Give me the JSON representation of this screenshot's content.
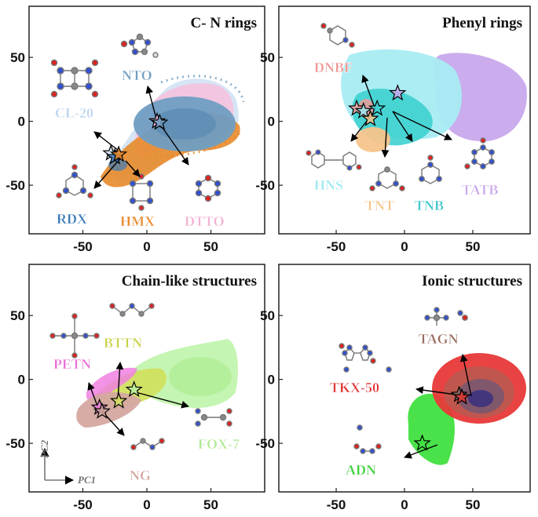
{
  "chart_data": [
    {
      "type": "scatter",
      "title": "C- N rings",
      "xlim": [
        -92,
        92
      ],
      "ylim": [
        -88,
        90
      ],
      "xticks": [
        "-50",
        "0",
        "50"
      ],
      "yticks": [
        "50",
        "0",
        "-50"
      ],
      "series": [
        {
          "name": "CL-20",
          "color": "#c8dcf0",
          "center": [
            -20,
            -10
          ]
        },
        {
          "name": "RDX",
          "color": "#3a7ab8",
          "center": [
            -28,
            -25
          ]
        },
        {
          "name": "HMX",
          "color": "#e8892a",
          "center": [
            -25,
            -28
          ]
        },
        {
          "name": "DTTO",
          "color": "#f5b8d8",
          "center": [
            -5,
            15
          ]
        },
        {
          "name": "NTO",
          "color": "#6f9ec2",
          "center": [
            10,
            0
          ]
        }
      ],
      "stars": [
        {
          "name": "CL-20",
          "x": -28,
          "y": -25,
          "fill": "#c8dcf0"
        },
        {
          "name": "RDX",
          "x": -25,
          "y": -28,
          "fill": "#3a7ab8"
        },
        {
          "name": "HMX",
          "x": -22,
          "y": -26,
          "fill": "#e8892a"
        },
        {
          "name": "DTTO",
          "x": 8,
          "y": 0,
          "fill": "#f5b8d8"
        },
        {
          "name": "NTO",
          "x": 10,
          "y": -1,
          "fill": "#6f9ec2"
        }
      ],
      "labels": [
        {
          "name": "CL-20",
          "color": "#b9d3ee"
        },
        {
          "name": "NTO",
          "color": "#6f9ec2"
        },
        {
          "name": "RDX",
          "color": "#3a7ab8"
        },
        {
          "name": "HMX",
          "color": "#e8892a"
        },
        {
          "name": "DTTO",
          "color": "#f3b2d4"
        }
      ]
    },
    {
      "type": "scatter",
      "title": "Phenyl rings",
      "xlim": [
        -92,
        92
      ],
      "ylim": [
        -88,
        90
      ],
      "xticks": [
        "-50",
        "0",
        "50"
      ],
      "yticks": [
        "50",
        "0",
        "-50"
      ],
      "series": [
        {
          "name": "TATB",
          "color": "#c8a8ec",
          "center": [
            45,
            20
          ]
        },
        {
          "name": "HNS",
          "color": "#9de8f0",
          "center": [
            -5,
            25
          ]
        },
        {
          "name": "TNB",
          "color": "#3ed0d0",
          "center": [
            -20,
            5
          ]
        },
        {
          "name": "TNT",
          "color": "#f5c48a",
          "center": [
            -25,
            -15
          ]
        },
        {
          "name": "DNBF",
          "color": "#f09a98",
          "center": [
            -35,
            10
          ]
        }
      ],
      "stars": [
        {
          "name": "DNBF",
          "x": -35,
          "y": 10,
          "fill": "#f09a98"
        },
        {
          "name": "HNS",
          "x": -30,
          "y": 8,
          "fill": "#9de8f0"
        },
        {
          "name": "TNT",
          "x": -25,
          "y": 2,
          "fill": "#f5c48a"
        },
        {
          "name": "TNB",
          "x": -20,
          "y": 10,
          "fill": "#3ed0d0"
        },
        {
          "name": "TATB",
          "x": -5,
          "y": 22,
          "fill": "#c8a8ec"
        }
      ],
      "labels": [
        {
          "name": "DNBF",
          "color": "#ef9895"
        },
        {
          "name": "HNS",
          "color": "#9de8f0"
        },
        {
          "name": "TNT",
          "color": "#f5c48a"
        },
        {
          "name": "TNB",
          "color": "#3ec7cc"
        },
        {
          "name": "TATB",
          "color": "#c8a8ec"
        }
      ]
    },
    {
      "type": "scatter",
      "title": "Chain-like structures",
      "xlim": [
        -92,
        92
      ],
      "ylim": [
        -88,
        90
      ],
      "xticks": [
        "-50",
        "0",
        "50"
      ],
      "yticks": [
        "50",
        "0",
        "-50"
      ],
      "series": [
        {
          "name": "FOX-7",
          "color": "#b8f0a0",
          "center": [
            30,
            10
          ]
        },
        {
          "name": "BTTN",
          "color": "#d4e060",
          "center": [
            -15,
            -10
          ]
        },
        {
          "name": "PETN",
          "color": "#f080e0",
          "center": [
            -25,
            -12
          ]
        },
        {
          "name": "NG",
          "color": "#d4a8a0",
          "center": [
            -35,
            -25
          ]
        }
      ],
      "stars": [
        {
          "name": "PETN",
          "x": -37,
          "y": -22,
          "fill": "#f080e0"
        },
        {
          "name": "NG",
          "x": -35,
          "y": -25,
          "fill": "#d4a8a0"
        },
        {
          "name": "BTTN",
          "x": -22,
          "y": -17,
          "fill": "#d4e060"
        },
        {
          "name": "FOX-7",
          "x": -10,
          "y": -8,
          "fill": "#b8f0a0"
        }
      ],
      "labels": [
        {
          "name": "PETN",
          "color": "#ea6fd8"
        },
        {
          "name": "BTTN",
          "color": "#c9d24b"
        },
        {
          "name": "NG",
          "color": "#cfa49b"
        },
        {
          "name": "FOX-7",
          "color": "#aeea95"
        }
      ],
      "axis_hint": {
        "x": "PC1",
        "y": "PC2"
      }
    },
    {
      "type": "scatter",
      "title": "Ionic structures",
      "xlim": [
        -92,
        92
      ],
      "ylim": [
        -88,
        90
      ],
      "xticks": [
        "-50",
        "0",
        "50"
      ],
      "yticks": [
        "50",
        "0",
        "-50"
      ],
      "series": [
        {
          "name": "TKX-50",
          "color": "#e83838",
          "center": [
            45,
            -10
          ]
        },
        {
          "name": "TAGN",
          "color": "#8a6a60",
          "center": [
            45,
            -12
          ]
        },
        {
          "name": "ADN",
          "color": "#40e040",
          "center": [
            15,
            -45
          ]
        }
      ],
      "stars": [
        {
          "name": "TAGN",
          "x": 40,
          "y": -12,
          "fill": "#8a6a60"
        },
        {
          "name": "TKX-50",
          "x": 42,
          "y": -14,
          "fill": "#e83838"
        },
        {
          "name": "ADN",
          "x": 13,
          "y": -50,
          "fill": "#40e040"
        }
      ],
      "labels": [
        {
          "name": "TAGN",
          "color": "#9b6e62"
        },
        {
          "name": "TKX-50",
          "color": "#e13434"
        },
        {
          "name": "ADN",
          "color": "#3ccf3c"
        }
      ]
    }
  ]
}
